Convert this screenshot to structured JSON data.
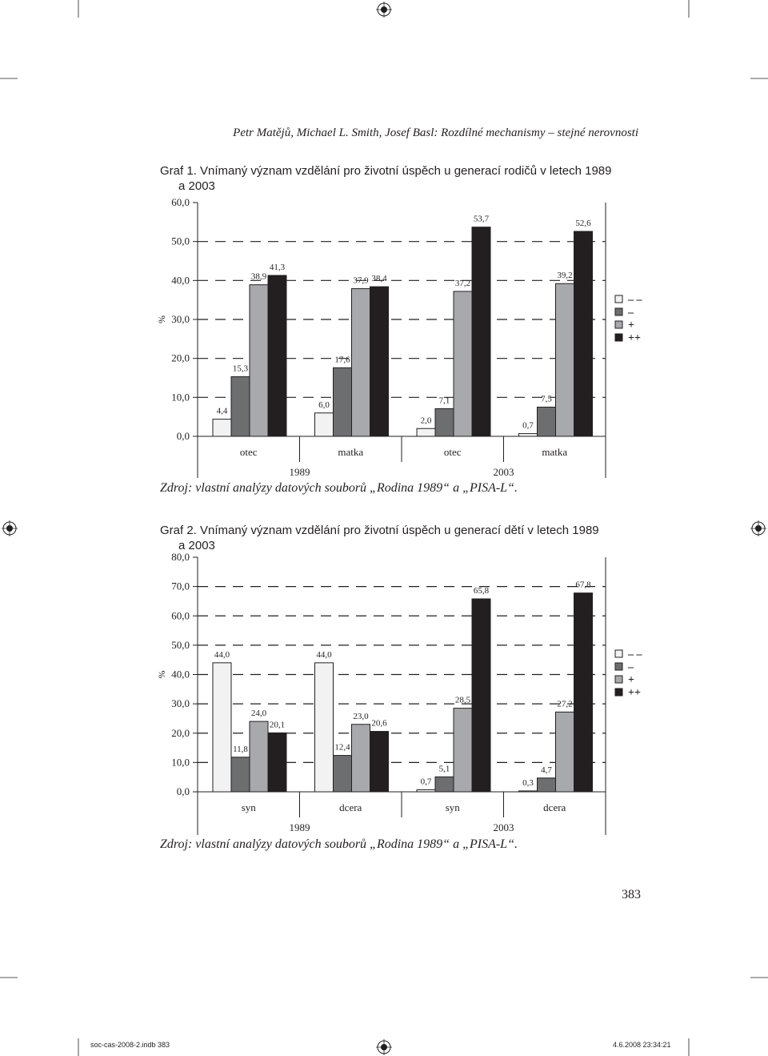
{
  "header": {
    "running_title": "Petr Matějů, Michael L. Smith, Josef Basl: Rozdílné mechanismy – stejné nerovnosti"
  },
  "figures": [
    {
      "label": "Graf 1.",
      "title_line1": "Vnímaný význam vzdělání pro životní úspěch u generací rodičů v letech 1989",
      "title_line2": "a 2003",
      "source": "Zdroj: vlastní analýzy datových souborů „Rodina 1989“ a „PISA-L“."
    },
    {
      "label": "Graf 2.",
      "title_line1": "Vnímaný význam vzdělání pro životní úspěch u generací dětí v letech 1989",
      "title_line2": "a 2003",
      "source": "Zdroj: vlastní analýzy datových souborů „Rodina 1989“ a „PISA-L“."
    }
  ],
  "colors": {
    "series": [
      "#f2f2f2",
      "#6d6e70",
      "#a7a9ac",
      "#231f20"
    ],
    "ink": "#231f20"
  },
  "chart_data": [
    {
      "type": "bar",
      "ylabel": "%",
      "ylim": [
        0,
        60
      ],
      "yticks": [
        "0,0",
        "10,0",
        "20,0",
        "30,0",
        "40,0",
        "50,0",
        "60,0"
      ],
      "grid": "dashed",
      "legend_position": "right",
      "categories": [
        "otec",
        "matka",
        "otec",
        "matka"
      ],
      "groups": [
        {
          "label": "1989",
          "categories": [
            0,
            1
          ]
        },
        {
          "label": "2003",
          "categories": [
            2,
            3
          ]
        }
      ],
      "series": [
        {
          "name": "– –",
          "values": [
            4.4,
            6.0,
            2.0,
            0.7
          ],
          "labels": [
            "4,4",
            "6,0",
            "2,0",
            "0,7"
          ]
        },
        {
          "name": "–",
          "values": [
            15.3,
            17.6,
            7.1,
            7.5
          ],
          "labels": [
            "15,3",
            "17,6",
            "7,1",
            "7,5"
          ]
        },
        {
          "name": "+",
          "values": [
            38.9,
            37.9,
            37.2,
            39.2
          ],
          "labels": [
            "38,9",
            "37,9",
            "37,2",
            "39,2"
          ]
        },
        {
          "name": "++",
          "values": [
            41.3,
            38.4,
            53.7,
            52.6
          ],
          "labels": [
            "41,3",
            "38,4",
            "53,7",
            "52,6"
          ]
        }
      ]
    },
    {
      "type": "bar",
      "ylabel": "%",
      "ylim": [
        0,
        80
      ],
      "yticks": [
        "0,0",
        "10,0",
        "20,0",
        "30,0",
        "40,0",
        "50,0",
        "60,0",
        "70,0",
        "80,0"
      ],
      "grid": "dashed",
      "legend_position": "right",
      "categories": [
        "syn",
        "dcera",
        "syn",
        "dcera"
      ],
      "groups": [
        {
          "label": "1989",
          "categories": [
            0,
            1
          ]
        },
        {
          "label": "2003",
          "categories": [
            2,
            3
          ]
        }
      ],
      "series": [
        {
          "name": "– –",
          "values": [
            44.0,
            44.0,
            0.7,
            0.3
          ],
          "labels": [
            "44,0",
            "44,0",
            "0,7",
            "0,3"
          ]
        },
        {
          "name": "–",
          "values": [
            11.8,
            12.4,
            5.1,
            4.7
          ],
          "labels": [
            "11,8",
            "12,4",
            "5,1",
            "4,7"
          ]
        },
        {
          "name": "+",
          "values": [
            24.0,
            23.0,
            28.5,
            27.2
          ],
          "labels": [
            "24,0",
            "23,0",
            "28,5",
            "27,2"
          ]
        },
        {
          "name": "++",
          "values": [
            20.1,
            20.6,
            65.8,
            67.8
          ],
          "labels": [
            "20,1",
            "20,6",
            "65,8",
            "67,8"
          ]
        }
      ]
    }
  ],
  "page_number": "383",
  "footer": {
    "file": "soc-cas-2008-2.indb   383",
    "timestamp": "4.6.2008   23:34:21"
  }
}
